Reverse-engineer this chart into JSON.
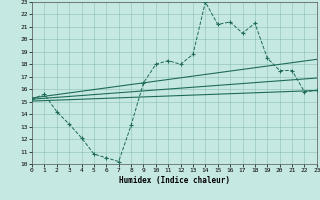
{
  "xlabel": "Humidex (Indice chaleur)",
  "xlim": [
    0,
    23
  ],
  "ylim": [
    10,
    23
  ],
  "xticks": [
    0,
    1,
    2,
    3,
    4,
    5,
    6,
    7,
    8,
    9,
    10,
    11,
    12,
    13,
    14,
    15,
    16,
    17,
    18,
    19,
    20,
    21,
    22,
    23
  ],
  "yticks": [
    10,
    11,
    12,
    13,
    14,
    15,
    16,
    17,
    18,
    19,
    20,
    21,
    22,
    23
  ],
  "bg_color": "#c6e8e2",
  "line_color": "#1e6b5a",
  "main_x": [
    0,
    1,
    2,
    3,
    4,
    5,
    6,
    7,
    8,
    9,
    10,
    11,
    12,
    13,
    14,
    15,
    16,
    17,
    18,
    19,
    20,
    21,
    22,
    23
  ],
  "main_y": [
    15.2,
    15.6,
    14.2,
    13.2,
    12.1,
    10.8,
    10.5,
    10.2,
    13.1,
    16.5,
    18.0,
    18.3,
    18.0,
    18.8,
    23.0,
    21.2,
    21.4,
    20.5,
    21.3,
    18.5,
    17.5,
    17.5,
    15.8,
    15.9
  ],
  "line1_x": [
    0,
    23
  ],
  "line1_y": [
    15.3,
    18.4
  ],
  "line2_x": [
    0,
    23
  ],
  "line2_y": [
    15.2,
    16.9
  ],
  "line3_x": [
    0,
    23
  ],
  "line3_y": [
    15.05,
    15.9
  ]
}
